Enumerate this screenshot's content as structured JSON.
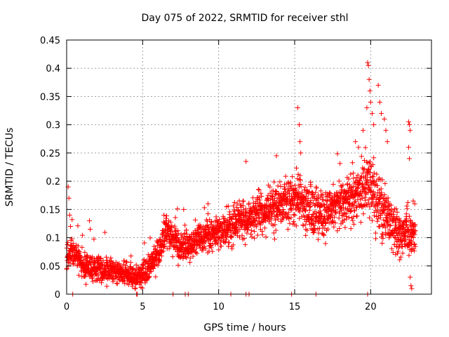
{
  "chart_data": {
    "type": "scatter",
    "title": "Day 075 of 2022, SRMTID for receiver sthl",
    "xlabel": "GPS time / hours",
    "ylabel": "SRMTID / TECUs",
    "xlim": [
      0,
      24
    ],
    "ylim": [
      0,
      0.45
    ],
    "xticks": [
      0,
      5,
      10,
      15,
      20
    ],
    "xtick_labels": [
      "0",
      "5",
      "10",
      "15",
      "20"
    ],
    "yticks": [
      0,
      0.05,
      0.1,
      0.15,
      0.2,
      0.25,
      0.3,
      0.35,
      0.4,
      0.45
    ],
    "ytick_labels": [
      "0",
      "0.05",
      "0.1",
      "0.15",
      "0.2",
      "0.25",
      "0.3",
      "0.35",
      "0.4",
      "0.45"
    ],
    "grid": true,
    "marker": "plus",
    "series_color": "#ff0000",
    "trend": {
      "x": [
        0,
        0.3,
        1,
        2,
        3,
        4,
        4.6,
        5.2,
        6,
        6.5,
        7.5,
        9,
        11,
        12.5,
        14,
        15,
        16,
        17,
        18,
        19,
        19.8,
        20.5,
        21.5,
        22.5,
        23
      ],
      "y": [
        0.065,
        0.08,
        0.05,
        0.045,
        0.04,
        0.035,
        0.03,
        0.04,
        0.07,
        0.11,
        0.08,
        0.1,
        0.12,
        0.14,
        0.16,
        0.17,
        0.15,
        0.14,
        0.16,
        0.17,
        0.2,
        0.16,
        0.11,
        0.1,
        0.1
      ]
    },
    "spread": {
      "x": [
        0,
        2,
        4,
        6,
        10,
        13,
        15,
        18,
        20,
        22,
        23
      ],
      "y": [
        0.03,
        0.025,
        0.02,
        0.03,
        0.035,
        0.045,
        0.05,
        0.045,
        0.06,
        0.05,
        0.04
      ]
    },
    "spikes": [
      {
        "x": 0.1,
        "y": 0.19
      },
      {
        "x": 0.15,
        "y": 0.17
      },
      {
        "x": 0.2,
        "y": 0.14
      },
      {
        "x": 0.25,
        "y": 0.12
      },
      {
        "x": 1.5,
        "y": 0.13
      },
      {
        "x": 1.55,
        "y": 0.115
      },
      {
        "x": 6.4,
        "y": 0.14
      },
      {
        "x": 7.7,
        "y": 0.15
      },
      {
        "x": 9.3,
        "y": 0.16
      },
      {
        "x": 11.8,
        "y": 0.235
      },
      {
        "x": 13.8,
        "y": 0.245
      },
      {
        "x": 15.2,
        "y": 0.33
      },
      {
        "x": 15.3,
        "y": 0.3
      },
      {
        "x": 15.35,
        "y": 0.27
      },
      {
        "x": 15.4,
        "y": 0.25
      },
      {
        "x": 19.0,
        "y": 0.27
      },
      {
        "x": 19.2,
        "y": 0.26
      },
      {
        "x": 19.5,
        "y": 0.29
      },
      {
        "x": 19.8,
        "y": 0.41
      },
      {
        "x": 19.85,
        "y": 0.405
      },
      {
        "x": 19.9,
        "y": 0.38
      },
      {
        "x": 19.95,
        "y": 0.36
      },
      {
        "x": 20.0,
        "y": 0.34
      },
      {
        "x": 19.75,
        "y": 0.33
      },
      {
        "x": 20.1,
        "y": 0.32
      },
      {
        "x": 20.2,
        "y": 0.3
      },
      {
        "x": 20.5,
        "y": 0.37
      },
      {
        "x": 20.6,
        "y": 0.34
      },
      {
        "x": 20.7,
        "y": 0.32
      },
      {
        "x": 20.9,
        "y": 0.31
      },
      {
        "x": 21.0,
        "y": 0.29
      },
      {
        "x": 21.1,
        "y": 0.27
      },
      {
        "x": 22.5,
        "y": 0.305
      },
      {
        "x": 22.55,
        "y": 0.3
      },
      {
        "x": 22.6,
        "y": 0.29
      },
      {
        "x": 22.5,
        "y": 0.26
      },
      {
        "x": 22.55,
        "y": 0.24
      },
      {
        "x": 22.8,
        "y": 0.165
      },
      {
        "x": 22.9,
        "y": 0.16
      },
      {
        "x": 22.6,
        "y": 0.03
      },
      {
        "x": 22.65,
        "y": 0.015
      },
      {
        "x": 22.7,
        "y": 0.01
      },
      {
        "x": 0.4,
        "y": 0
      },
      {
        "x": 4.6,
        "y": 0
      },
      {
        "x": 4.65,
        "y": 0
      },
      {
        "x": 7.0,
        "y": 0
      },
      {
        "x": 7.8,
        "y": 0
      },
      {
        "x": 8.0,
        "y": 0
      },
      {
        "x": 10.8,
        "y": 0
      },
      {
        "x": 11.8,
        "y": 0
      },
      {
        "x": 12.0,
        "y": 0
      },
      {
        "x": 14.8,
        "y": 0
      },
      {
        "x": 16.4,
        "y": 0
      },
      {
        "x": 19.8,
        "y": 0
      }
    ],
    "gaps": [
      [
        22.95,
        24
      ]
    ],
    "point_count": 2600,
    "seed": 75
  }
}
